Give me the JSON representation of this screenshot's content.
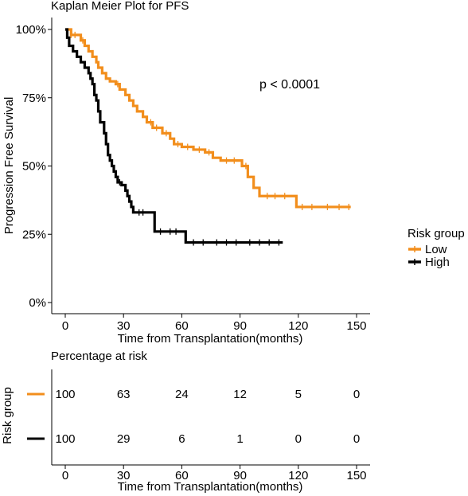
{
  "colors": {
    "low": "#F28E1C",
    "high": "#000000"
  },
  "chart_data": [
    {
      "type": "line",
      "subtype": "kaplan-meier",
      "title": "Kaplan Meier Plot for PFS",
      "xlabel": "Time from Transplantation(months)",
      "ylabel": "Progression Free Survival",
      "xlim": [
        -4,
        155
      ],
      "ylim": [
        -0.02,
        1.02
      ],
      "x_ticks": [
        0,
        30,
        60,
        90,
        120,
        150
      ],
      "y_ticks": [
        0,
        0.25,
        0.5,
        0.75,
        1.0
      ],
      "y_tick_labels": [
        "0%",
        "25%",
        "50%",
        "75%",
        "100%"
      ],
      "annotation": "p < 0.0001",
      "legend": {
        "title": "Risk group",
        "position": "right",
        "entries": [
          "Low",
          "High"
        ]
      },
      "grid": false,
      "series": [
        {
          "name": "Low",
          "color": "#F28E1C",
          "steps": [
            [
              0,
              1.0
            ],
            [
              3,
              0.98
            ],
            [
              8,
              0.96
            ],
            [
              10,
              0.94
            ],
            [
              12,
              0.92
            ],
            [
              14,
              0.9
            ],
            [
              16,
              0.88
            ],
            [
              17,
              0.86
            ],
            [
              19,
              0.84
            ],
            [
              21,
              0.82
            ],
            [
              23,
              0.81
            ],
            [
              26,
              0.8
            ],
            [
              28,
              0.78
            ],
            [
              31,
              0.76
            ],
            [
              33,
              0.74
            ],
            [
              35,
              0.72
            ],
            [
              37,
              0.7
            ],
            [
              40,
              0.68
            ],
            [
              42,
              0.66
            ],
            [
              45,
              0.64
            ],
            [
              50,
              0.62
            ],
            [
              54,
              0.6
            ],
            [
              56,
              0.58
            ],
            [
              60,
              0.57
            ],
            [
              66,
              0.56
            ],
            [
              72,
              0.55
            ],
            [
              76,
              0.53
            ],
            [
              80,
              0.52
            ],
            [
              91,
              0.5
            ],
            [
              94,
              0.46
            ],
            [
              97,
              0.42
            ],
            [
              100,
              0.39
            ],
            [
              119,
              0.35
            ],
            [
              147,
              0.35
            ]
          ],
          "censor_times": [
            3,
            5,
            9,
            27,
            44,
            47,
            52,
            58,
            63,
            69,
            74,
            83,
            87,
            93,
            104,
            108,
            113,
            122,
            127,
            135,
            141,
            146
          ]
        },
        {
          "name": "High",
          "color": "#000000",
          "steps": [
            [
              0,
              1.0
            ],
            [
              1,
              0.97
            ],
            [
              2,
              0.94
            ],
            [
              4,
              0.92
            ],
            [
              6,
              0.9
            ],
            [
              8,
              0.88
            ],
            [
              10,
              0.86
            ],
            [
              12,
              0.84
            ],
            [
              13,
              0.82
            ],
            [
              14,
              0.8
            ],
            [
              15,
              0.76
            ],
            [
              16,
              0.74
            ],
            [
              17,
              0.7
            ],
            [
              18,
              0.66
            ],
            [
              20,
              0.62
            ],
            [
              21,
              0.58
            ],
            [
              22,
              0.54
            ],
            [
              23,
              0.52
            ],
            [
              24,
              0.5
            ],
            [
              25,
              0.48
            ],
            [
              26,
              0.46
            ],
            [
              27,
              0.44
            ],
            [
              29,
              0.43
            ],
            [
              31,
              0.41
            ],
            [
              32,
              0.39
            ],
            [
              33,
              0.37
            ],
            [
              34,
              0.35
            ],
            [
              35,
              0.33
            ],
            [
              46,
              0.26
            ],
            [
              62,
              0.22
            ],
            [
              112,
              0.22
            ]
          ],
          "censor_times": [
            28,
            38,
            40,
            49,
            54,
            57,
            66,
            71,
            78,
            83,
            88,
            95,
            100,
            105,
            110
          ]
        }
      ]
    },
    {
      "type": "table",
      "title": "Percentage at risk",
      "xlabel": "Time from Transplantation(months)",
      "ylabel": "Risk group",
      "x_ticks": [
        0,
        30,
        60,
        90,
        120,
        150
      ],
      "rows": [
        {
          "group": "Low",
          "color": "#F28E1C",
          "values": [
            "100",
            "63",
            "24",
            "12",
            "5",
            "0"
          ]
        },
        {
          "group": "High",
          "color": "#000000",
          "values": [
            "100",
            "29",
            "6",
            "1",
            "0",
            "0"
          ]
        }
      ]
    }
  ]
}
